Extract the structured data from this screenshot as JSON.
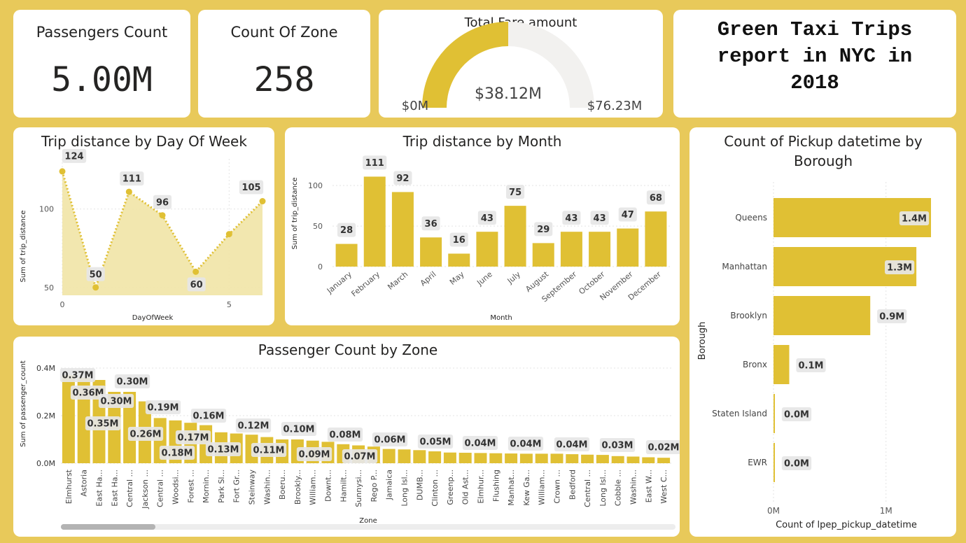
{
  "kpis": {
    "passengers": {
      "title": "Passengers Count",
      "value": "5.00M"
    },
    "zones": {
      "title": "Count Of Zone",
      "value": "258"
    }
  },
  "gauge": {
    "title": "Total Fare amount",
    "min_label": "$0M",
    "value_label": "$38.12M",
    "max_label": "$76.23M",
    "value": 38.12,
    "max": 76.23,
    "fill_color": "#E0C034",
    "track_color": "#F2F1EF"
  },
  "report_title": "Green Taxi  Trips\nreport in NYC in\n2018",
  "colors": {
    "bar": "#E0C034",
    "area": "#F1E4A6",
    "label_bg": "#E6E6E6"
  },
  "chart_data": [
    {
      "id": "dow",
      "type": "line",
      "title": "Trip distance by Day Of Week",
      "xlabel": "DayOfWeek",
      "ylabel": "Sum of trip_distance",
      "x": [
        0,
        1,
        2,
        3,
        4,
        5,
        6
      ],
      "y": [
        124,
        50,
        111,
        96,
        60,
        84,
        105
      ],
      "data_labels": [
        "124",
        "50",
        "111",
        "96",
        "60",
        "",
        "105"
      ],
      "xticks": [
        "0",
        "5"
      ],
      "yticks": [
        "50",
        "100"
      ],
      "xlim": [
        0,
        6
      ],
      "ylim": [
        45,
        132
      ]
    },
    {
      "id": "month",
      "type": "bar",
      "title": "Trip distance by Month",
      "xlabel": "Month",
      "ylabel": "Sum of trip_distance",
      "categories": [
        "January",
        "February",
        "March",
        "April",
        "May",
        "June",
        "July",
        "August",
        "September",
        "October",
        "November",
        "December"
      ],
      "values": [
        28,
        111,
        92,
        36,
        16,
        43,
        75,
        29,
        43,
        43,
        47,
        68
      ],
      "yticks": [
        "0",
        "50",
        "100"
      ],
      "ylim": [
        0,
        120
      ]
    },
    {
      "id": "zone",
      "type": "bar",
      "title": "Passenger Count by Zone",
      "xlabel": "Zone",
      "ylabel": "Sum of passenger_count",
      "categories": [
        "Elmhurst",
        "Astoria",
        "East Ha...",
        "East Ha...",
        "Central ...",
        "Jackson ...",
        "Central ...",
        "Woodsi...",
        "Forest ...",
        "Mornin...",
        "Park Sl...",
        "Fort Gr...",
        "Steinway",
        "Washin...",
        "Boeru...",
        "Brookly...",
        "William...",
        "Downt...",
        "Hamilt...",
        "Sunnysi...",
        "Rego P...",
        "Jamaica",
        "Long Isl...",
        "DUMB...",
        "Clinton ...",
        "Greenp...",
        "Old Ast...",
        "Elmhur...",
        "Flushing",
        "Manhat...",
        "Kew Ga...",
        "William...",
        "Crown ...",
        "Bedford",
        "Central ...",
        "Long Isl...",
        "Cobble ...",
        "Washin...",
        "East W...",
        "West C..."
      ],
      "values": [
        0.37,
        0.36,
        0.35,
        0.3,
        0.3,
        0.26,
        0.19,
        0.18,
        0.17,
        0.16,
        0.13,
        0.125,
        0.12,
        0.11,
        0.1,
        0.1,
        0.095,
        0.09,
        0.08,
        0.075,
        0.07,
        0.06,
        0.058,
        0.055,
        0.05,
        0.045,
        0.044,
        0.043,
        0.042,
        0.041,
        0.04,
        0.04,
        0.04,
        0.038,
        0.036,
        0.035,
        0.03,
        0.028,
        0.025,
        0.023
      ],
      "data_labels": [
        "0.37M",
        "0.36M",
        "0.35M",
        "0.30M",
        "0.30M",
        "0.26M",
        "0.19M",
        "0.18M",
        "0.17M",
        "0.16M",
        "0.13M",
        "",
        "0.12M",
        "0.11M",
        "0.10M",
        "",
        "0.09M",
        "",
        "0.08M",
        "0.07M",
        "",
        "0.06M",
        "",
        "",
        "0.05M",
        "",
        "",
        "0.04M",
        "",
        "",
        "0.04M",
        "",
        "",
        "0.04M",
        "",
        "",
        "0.03M",
        "",
        "",
        "0.02M"
      ],
      "yticks": [
        "0.0M",
        "0.2M",
        "0.4M"
      ],
      "ylim": [
        0,
        0.4
      ]
    },
    {
      "id": "borough",
      "type": "bar",
      "orientation": "horizontal",
      "title": "Count of Pickup datetime by Borough",
      "xlabel": "Count of lpep_pickup_datetime",
      "ylabel": "Borough",
      "categories": [
        "Queens",
        "Manhattan",
        "Brooklyn",
        "Bronx",
        "Staten Island",
        "EWR"
      ],
      "values": [
        1.4,
        1.27,
        0.86,
        0.14,
        0.01,
        0.01
      ],
      "data_labels": [
        "1.4M",
        "1.3M",
        "0.9M",
        "0.1M",
        "0.0M",
        "0.0M"
      ],
      "xticks": [
        "0M",
        "1M"
      ],
      "xlim": [
        0,
        1.4
      ]
    }
  ]
}
